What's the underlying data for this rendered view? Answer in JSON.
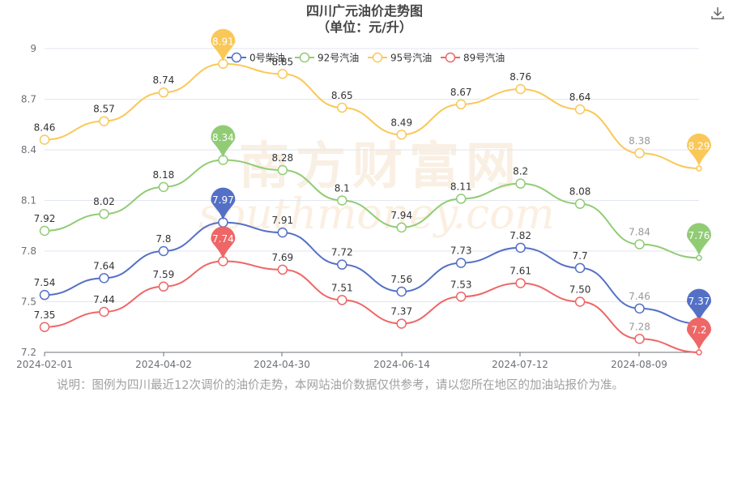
{
  "header": {
    "title": "四川广元油价走势图",
    "subtitle": "（单位：元/升）"
  },
  "toolbar": {
    "download_icon": "download-icon"
  },
  "note": "说明：图例为四川最近12次调价的油价走势，本网站油价数据仅供参考，请以您所在地区的加油站报价为准。",
  "watermark": {
    "cn": "南方财富网",
    "en": "southmoney.com"
  },
  "colors": {
    "diesel0": "#5470c6",
    "gas92": "#91cc75",
    "gas95": "#fac858",
    "gas89": "#ee6666",
    "axis": "#6e7079",
    "grid": "#e0e6f1",
    "label": "#333333",
    "label_faded": "#999999"
  },
  "chart_data": {
    "type": "line",
    "title": "四川广元油价走势图",
    "subtitle": "（单位：元/升）",
    "xlabel": "",
    "ylabel": "",
    "ylim": [
      7.2,
      9
    ],
    "yticks": [
      "7.2",
      "7.5",
      "7.8",
      "8.1",
      "8.4",
      "8.7",
      "9"
    ],
    "xtick_labels": [
      "2024-02-01",
      "2024-04-02",
      "2024-04-30",
      "2024-06-14",
      "2024-07-12",
      "2024-08-09"
    ],
    "smooth": true,
    "grid": true,
    "legend_position": "top-right",
    "series": [
      {
        "name": "0号柴油",
        "key": "diesel0",
        "values": [
          7.54,
          7.64,
          7.8,
          7.97,
          7.91,
          7.72,
          7.56,
          7.73,
          7.82,
          7.7,
          7.46,
          7.37
        ],
        "labels": [
          "7.54",
          "7.64",
          "7.8",
          "",
          "7.91",
          "7.72",
          "7.56",
          "7.73",
          "7.82",
          "7.7",
          "7.46",
          ""
        ],
        "max_pin": "7.97",
        "last_pin": "7.37"
      },
      {
        "name": "92号汽油",
        "key": "gas92",
        "values": [
          7.92,
          8.02,
          8.18,
          8.34,
          8.28,
          8.1,
          7.94,
          8.11,
          8.2,
          8.08,
          7.84,
          7.76
        ],
        "labels": [
          "7.92",
          "8.02",
          "8.18",
          "",
          "8.28",
          "8.1",
          "7.94",
          "8.11",
          "8.2",
          "8.08",
          "7.84",
          ""
        ],
        "max_pin": "8.34",
        "last_pin": "7.76"
      },
      {
        "name": "95号汽油",
        "key": "gas95",
        "values": [
          8.46,
          8.57,
          8.74,
          8.91,
          8.85,
          8.65,
          8.49,
          8.67,
          8.76,
          8.64,
          8.38,
          8.29
        ],
        "labels": [
          "8.46",
          "8.57",
          "8.74",
          "",
          "8.85",
          "8.65",
          "8.49",
          "8.67",
          "8.76",
          "8.64",
          "8.38",
          ""
        ],
        "max_pin": "8.91",
        "last_pin": "8.29"
      },
      {
        "name": "89号汽油",
        "key": "gas89",
        "values": [
          7.35,
          7.44,
          7.59,
          7.74,
          7.69,
          7.51,
          7.37,
          7.53,
          7.61,
          7.5,
          7.28,
          7.2
        ],
        "labels": [
          "7.35",
          "7.44",
          "7.59",
          "",
          "7.69",
          "7.51",
          "7.37",
          "7.53",
          "7.61",
          "7.50",
          "7.28",
          ""
        ],
        "max_pin": "7.74",
        "last_pin": "7.2"
      }
    ]
  }
}
